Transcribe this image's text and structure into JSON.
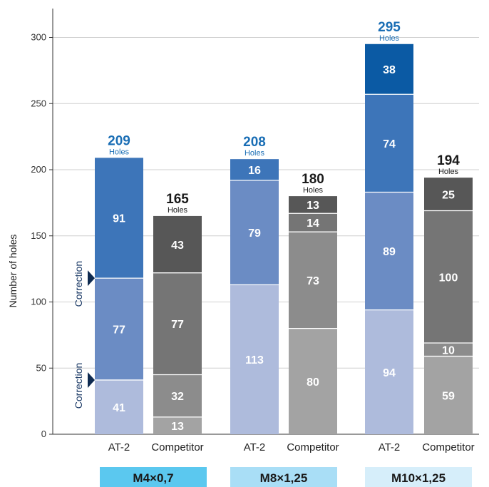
{
  "chart_data": {
    "type": "bar",
    "stacked": true,
    "title": "",
    "xlabel": "",
    "ylabel": "Number of holes",
    "ylim": [
      0,
      330
    ],
    "yticks": [
      0,
      50,
      100,
      150,
      200,
      250,
      300
    ],
    "grid": true,
    "unit_label": "Holes",
    "groups": [
      {
        "name": "M4×0,7",
        "color": "#5bc8ef",
        "bars": [
          {
            "label": "AT-2",
            "kind": "at2",
            "total": 209,
            "segments": [
              41,
              77,
              91
            ]
          },
          {
            "label": "Competitor",
            "kind": "comp",
            "total": 165,
            "segments": [
              13,
              32,
              77,
              43
            ]
          }
        ]
      },
      {
        "name": "M8×1,25",
        "color": "#a9def6",
        "bars": [
          {
            "label": "AT-2",
            "kind": "at2",
            "total": 208,
            "segments": [
              113,
              79,
              16
            ]
          },
          {
            "label": "Competitor",
            "kind": "comp",
            "total": 180,
            "segments": [
              80,
              73,
              14,
              13
            ]
          }
        ]
      },
      {
        "name": "M10×1,25",
        "color": "#d6eefa",
        "bars": [
          {
            "label": "AT-2",
            "kind": "at2",
            "total": 295,
            "segments": [
              94,
              89,
              74,
              38
            ]
          },
          {
            "label": "Competitor",
            "kind": "comp",
            "total": 194,
            "segments": [
              59,
              10,
              100,
              25
            ]
          }
        ]
      }
    ],
    "annotations": [
      {
        "text": "Correction",
        "at_value": 41
      },
      {
        "text": "Correction",
        "at_value": 118
      }
    ],
    "colors": {
      "at2": [
        "#aebbdc",
        "#6b8cc4",
        "#3d75b9",
        "#0b5aa4"
      ],
      "comp": [
        "#a3a3a3",
        "#8c8c8c",
        "#757575",
        "#575757"
      ],
      "at2_total": "#1a6eb5",
      "comp_total": "#1a1a1a"
    }
  }
}
